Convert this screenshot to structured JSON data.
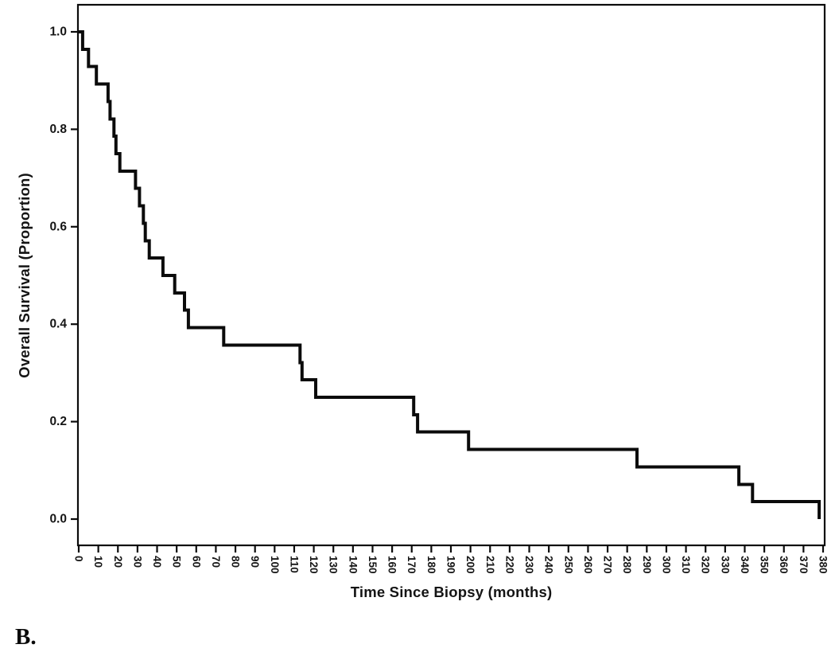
{
  "figure": {
    "panel_label": "B.",
    "background_color": "#ffffff",
    "line_color": "#0b0b0b",
    "text_color": "#161616"
  },
  "chart_data": {
    "type": "line",
    "subtype": "kaplan-meier-step",
    "title": "",
    "xlabel": "Time Since Biopsy (months)",
    "ylabel": "Overall Survival (Proportion)",
    "xlim": [
      0,
      380
    ],
    "ylim": [
      0.0,
      1.0
    ],
    "grid": false,
    "legend_position": "none",
    "x_ticks": [
      0,
      10,
      20,
      30,
      40,
      50,
      60,
      70,
      80,
      90,
      100,
      110,
      120,
      130,
      140,
      150,
      160,
      170,
      180,
      190,
      200,
      210,
      220,
      230,
      240,
      250,
      260,
      270,
      280,
      290,
      300,
      310,
      320,
      330,
      340,
      350,
      360,
      370,
      380
    ],
    "x_tick_label_rotation_deg": 90,
    "y_ticks": [
      "0.0",
      "0.2",
      "0.4",
      "0.6",
      "0.8",
      "1.0"
    ],
    "series": [
      {
        "name": "Overall Survival",
        "step_size": 0.0357,
        "points": [
          [
            0,
            1.0
          ],
          [
            2,
            0.964
          ],
          [
            5,
            0.929
          ],
          [
            9,
            0.893
          ],
          [
            15,
            0.857
          ],
          [
            16,
            0.821
          ],
          [
            18,
            0.786
          ],
          [
            19,
            0.75
          ],
          [
            21,
            0.714
          ],
          [
            29,
            0.679
          ],
          [
            31,
            0.643
          ],
          [
            33,
            0.607
          ],
          [
            34,
            0.571
          ],
          [
            36,
            0.536
          ],
          [
            43,
            0.5
          ],
          [
            49,
            0.464
          ],
          [
            54,
            0.429
          ],
          [
            56,
            0.393
          ],
          [
            74,
            0.357
          ],
          [
            113,
            0.321
          ],
          [
            114,
            0.286
          ],
          [
            121,
            0.25
          ],
          [
            171,
            0.214
          ],
          [
            173,
            0.179
          ],
          [
            199,
            0.143
          ],
          [
            285,
            0.107
          ],
          [
            337,
            0.071
          ],
          [
            344,
            0.036
          ],
          [
            378,
            0.0
          ]
        ]
      }
    ]
  }
}
